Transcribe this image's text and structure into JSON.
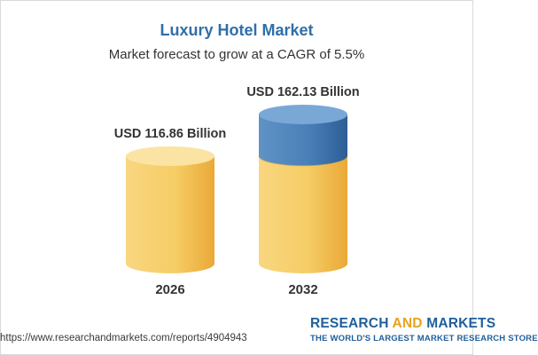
{
  "chart_data": {
    "type": "bar",
    "title": "Luxury Hotel Market",
    "subtitle": "Market forecast to grow at a CAGR of 5.5%",
    "categories": [
      "2026",
      "2032"
    ],
    "values": [
      116.86,
      162.13
    ],
    "value_labels": [
      "USD 116.86 Billion",
      "USD 162.13 Billion"
    ],
    "unit": "USD Billion",
    "style": "3d-cylinder",
    "colors": {
      "base": "#f5c95a",
      "base_dark": "#e9a93a",
      "base_top": "#fbe4a3",
      "increase": "#4f86bd",
      "increase_dark": "#2f6099",
      "increase_top": "#7aa8d6"
    }
  },
  "footer": {
    "url": "https://www.researchandmarkets.com/reports/4904943",
    "brand_left": "RESEARCH ",
    "brand_and": "AND",
    "brand_right": " MARKETS",
    "tagline": "THE WORLD'S LARGEST MARKET RESEARCH STORE"
  }
}
